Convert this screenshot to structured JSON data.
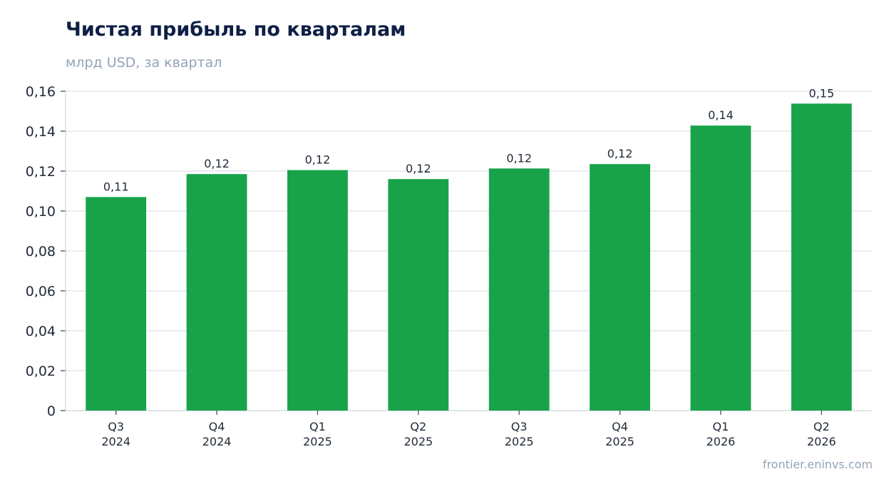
{
  "chart_data": {
    "type": "bar",
    "title": "Чистая прибыль по кварталам",
    "subtitle": "млрд USD, за квартал",
    "categories": [
      [
        "Q3",
        "2024"
      ],
      [
        "Q4",
        "2024"
      ],
      [
        "Q1",
        "2025"
      ],
      [
        "Q2",
        "2025"
      ],
      [
        "Q3",
        "2025"
      ],
      [
        "Q4",
        "2025"
      ],
      [
        "Q1",
        "2026"
      ],
      [
        "Q2",
        "2026"
      ]
    ],
    "values": [
      0.107,
      0.1185,
      0.1205,
      0.116,
      0.1213,
      0.1235,
      0.1428,
      0.1538
    ],
    "value_labels": [
      "0,11",
      "0,12",
      "0,12",
      "0,12",
      "0,12",
      "0,12",
      "0,14",
      "0,15"
    ],
    "ylim": [
      0,
      0.16
    ],
    "yticks": [
      0,
      0.02,
      0.04,
      0.06,
      0.08,
      0.1,
      0.12,
      0.14,
      0.16
    ],
    "ytick_labels": [
      "0",
      "0,02",
      "0,04",
      "0,06",
      "0,08",
      "0,10",
      "0,12",
      "0,14",
      "0,16"
    ],
    "grid": true,
    "bar_color": "#18a34a",
    "grid_color": "#e5e7eb"
  },
  "source": "frontier.eninvs.com"
}
